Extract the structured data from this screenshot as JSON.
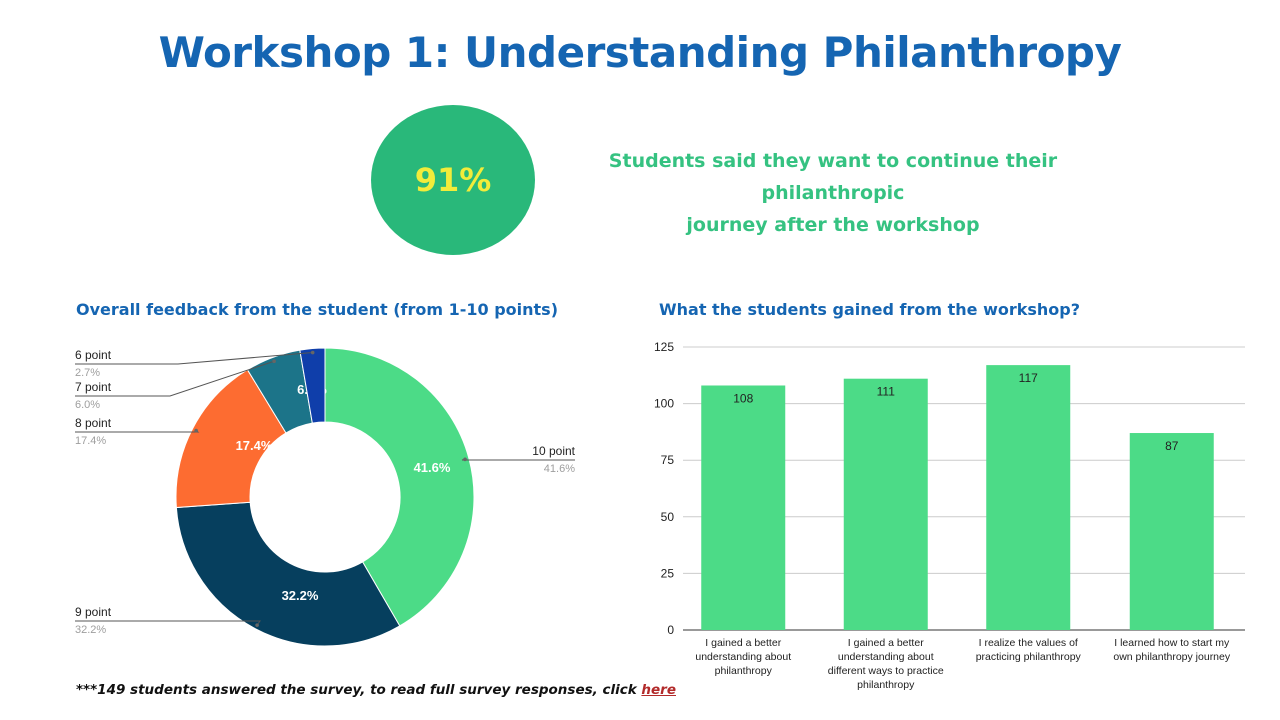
{
  "page": {
    "title": "Workshop 1: Understanding Philanthropy",
    "highlight": {
      "value": "91%",
      "caption_line1": "Students said they want to continue their philanthropic",
      "caption_line2": "journey after the workshop"
    },
    "footnote": {
      "text": "***149 students answered the survey, to read full survey responses, click ",
      "link_text": "here"
    }
  },
  "chart_data": [
    {
      "type": "pie",
      "title": "Overall feedback from the student (from 1-10 points)",
      "donut": true,
      "slices": [
        {
          "label": "10 point",
          "value": 41.6,
          "pct_label": "41.6%",
          "color": "#4cdb87"
        },
        {
          "label": "9 point",
          "value": 32.2,
          "pct_label": "32.2%",
          "color": "#063f5e"
        },
        {
          "label": "8 point",
          "value": 17.4,
          "pct_label": "17.4%",
          "color": "#fd6c31"
        },
        {
          "label": "7 point",
          "value": 6.0,
          "pct_label": "6.0%",
          "color": "#1c7489"
        },
        {
          "label": "6 point",
          "value": 2.7,
          "pct_label": "2.7%",
          "color": "#0f3eaa"
        }
      ]
    },
    {
      "type": "bar",
      "title": "What the students gained from the workshop?",
      "categories": [
        "I gained a better understanding about philanthropy",
        "I gained a better understanding about different ways to practice philanthropy",
        "I realize the values of practicing philanthropy",
        "I learned how to start my own philanthropy journey"
      ],
      "category_lines": [
        [
          "I gained a better",
          "understanding about",
          "philanthropy"
        ],
        [
          "I gained a better",
          "understanding about",
          "different ways to practice",
          "philanthropy"
        ],
        [
          "I realize the values of",
          "practicing philanthropy"
        ],
        [
          "I learned how to start my",
          "own philanthropy journey"
        ]
      ],
      "values": [
        108,
        111,
        117,
        87
      ],
      "ylim": [
        0,
        125
      ],
      "yticks": [
        0,
        25,
        50,
        75,
        100,
        125
      ],
      "grid": true,
      "color": "#4cdb87"
    }
  ]
}
